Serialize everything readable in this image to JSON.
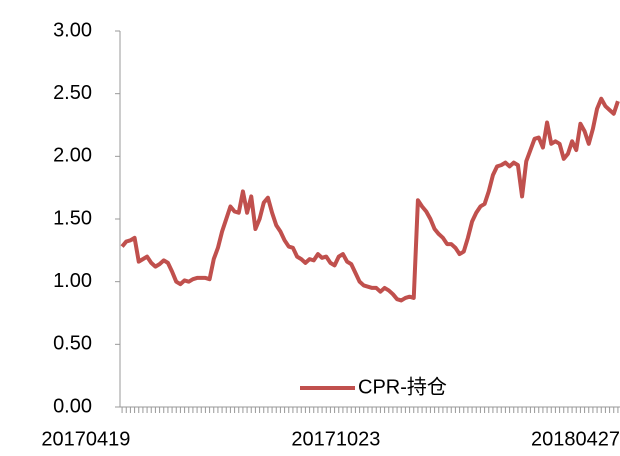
{
  "chart_data": {
    "type": "line",
    "categories": [
      "20170419",
      null,
      null,
      null,
      null,
      null,
      null,
      null,
      null,
      null,
      null,
      null,
      null,
      null,
      null,
      null,
      null,
      null,
      null,
      null,
      null,
      null,
      null,
      null,
      null,
      null,
      null,
      null,
      null,
      null,
      null,
      null,
      null,
      null,
      null,
      null,
      null,
      null,
      null,
      null,
      null,
      null,
      null,
      null,
      null,
      null,
      null,
      null,
      null,
      null,
      null,
      null,
      null,
      null,
      null,
      null,
      null,
      null,
      null,
      null,
      "20171023",
      null,
      null,
      null,
      null,
      null,
      null,
      null,
      null,
      null,
      null,
      null,
      null,
      null,
      null,
      null,
      null,
      null,
      null,
      null,
      null,
      null,
      null,
      null,
      null,
      null,
      null,
      null,
      null,
      null,
      null,
      null,
      null,
      null,
      null,
      null,
      null,
      null,
      null,
      null,
      null,
      null,
      null,
      null,
      null,
      null,
      null,
      null,
      null,
      null,
      null,
      null,
      null,
      null,
      null,
      null,
      null,
      null,
      null,
      "20180427"
    ],
    "series": [
      {
        "name": "CPR-持仓",
        "color": "#c0504d",
        "values": [
          1.28,
          1.32,
          1.33,
          1.35,
          1.16,
          1.18,
          1.2,
          1.15,
          1.12,
          1.14,
          1.17,
          1.15,
          1.08,
          1.0,
          0.98,
          1.01,
          1.0,
          1.02,
          1.03,
          1.03,
          1.03,
          1.02,
          1.18,
          1.27,
          1.4,
          1.5,
          1.6,
          1.56,
          1.55,
          1.72,
          1.55,
          1.68,
          1.42,
          1.5,
          1.63,
          1.67,
          1.55,
          1.45,
          1.4,
          1.33,
          1.28,
          1.27,
          1.2,
          1.18,
          1.15,
          1.18,
          1.17,
          1.22,
          1.19,
          1.2,
          1.15,
          1.13,
          1.2,
          1.22,
          1.16,
          1.14,
          1.07,
          1.0,
          0.97,
          0.96,
          0.95,
          0.95,
          0.92,
          0.95,
          0.93,
          0.9,
          0.86,
          0.85,
          0.87,
          0.88,
          0.87,
          1.65,
          1.6,
          1.56,
          1.5,
          1.42,
          1.38,
          1.35,
          1.3,
          1.3,
          1.27,
          1.22,
          1.24,
          1.35,
          1.48,
          1.55,
          1.6,
          1.62,
          1.72,
          1.85,
          1.92,
          1.93,
          1.95,
          1.92,
          1.95,
          1.93,
          1.68,
          1.96,
          2.05,
          2.14,
          2.15,
          2.07,
          2.27,
          2.1,
          2.12,
          2.1,
          1.98,
          2.02,
          2.12,
          2.05,
          2.26,
          2.2,
          2.1,
          2.22,
          2.38,
          2.46,
          2.4,
          2.37,
          2.34,
          2.44
        ]
      }
    ],
    "ylim": [
      0,
      3
    ],
    "yticks": [
      {
        "value": 0,
        "label": "0.00"
      },
      {
        "value": 0.5,
        "label": "0.50"
      },
      {
        "value": 1,
        "label": "1.00"
      },
      {
        "value": 1.5,
        "label": "1.50"
      },
      {
        "value": 2,
        "label": "2.00"
      },
      {
        "value": 2.5,
        "label": "2.50"
      },
      {
        "value": 3,
        "label": "3.00"
      }
    ],
    "grid": false,
    "legend": "bottom"
  }
}
